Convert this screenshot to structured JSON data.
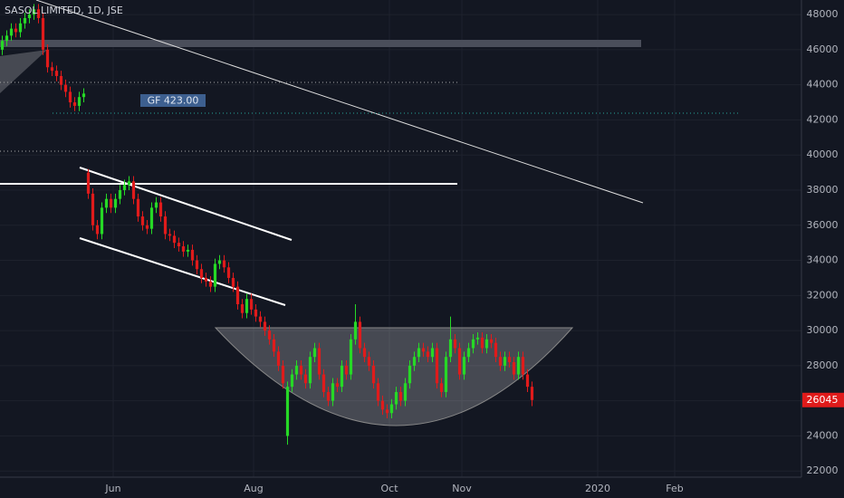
{
  "chart_data": {
    "type": "candlestick",
    "title": "SASOL LIMITED, 1D, JSE",
    "annotation": "GF 423.00",
    "up_color": "#26d926",
    "down_color": "#e01b1b",
    "grid": true,
    "xlim": [
      0,
      177
    ],
    "xticks": [
      {
        "value": 25,
        "label": "Jun"
      },
      {
        "value": 56,
        "label": "Aug"
      },
      {
        "value": 86,
        "label": "Oct"
      },
      {
        "value": 102,
        "label": "Nov"
      },
      {
        "value": 132,
        "label": "2020"
      },
      {
        "value": 149,
        "label": "Feb"
      }
    ],
    "ylim": [
      21650,
      48830
    ],
    "yticks": [
      22000,
      24000,
      26000,
      28000,
      30000,
      32000,
      34000,
      36000,
      38000,
      40000,
      42000,
      44000,
      46000,
      48000
    ],
    "ohlc": [
      [
        46000,
        46800,
        45700,
        46500
      ],
      [
        46500,
        47100,
        46200,
        46800
      ],
      [
        46800,
        47500,
        46500,
        47200
      ],
      [
        47200,
        47500,
        46700,
        47000
      ],
      [
        47000,
        47800,
        46700,
        47500
      ],
      [
        47500,
        48100,
        47200,
        47800
      ],
      [
        47800,
        48300,
        47500,
        48000
      ],
      [
        48000,
        48600,
        47700,
        48300
      ],
      [
        48300,
        48600,
        47500,
        47800
      ],
      [
        47800,
        48100,
        45700,
        46000
      ],
      [
        46000,
        46300,
        44700,
        45000
      ],
      [
        45000,
        45300,
        44500,
        44800
      ],
      [
        44800,
        45100,
        44200,
        44500
      ],
      [
        44500,
        44800,
        43700,
        44000
      ],
      [
        44000,
        44300,
        43300,
        43600
      ],
      [
        43600,
        43900,
        42700,
        43000
      ],
      [
        43000,
        43300,
        42500,
        42800
      ],
      [
        42800,
        43600,
        42500,
        43300
      ],
      [
        43300,
        43800,
        43000,
        43500
      ],
      [
        39000,
        39200,
        37500,
        37800
      ],
      [
        37800,
        38100,
        35700,
        36000
      ],
      [
        36000,
        36300,
        35200,
        35500
      ],
      [
        35500,
        37300,
        35200,
        37000
      ],
      [
        37000,
        37800,
        36700,
        37500
      ],
      [
        37500,
        37800,
        36700,
        37000
      ],
      [
        37000,
        37800,
        36700,
        37500
      ],
      [
        37500,
        38300,
        37200,
        38000
      ],
      [
        38000,
        38600,
        37700,
        38300
      ],
      [
        38300,
        38800,
        38000,
        38500
      ],
      [
        38500,
        38800,
        37200,
        37500
      ],
      [
        37500,
        37800,
        36200,
        36500
      ],
      [
        36500,
        36800,
        35700,
        36000
      ],
      [
        36000,
        36300,
        35500,
        35800
      ],
      [
        35800,
        37300,
        35500,
        37000
      ],
      [
        37000,
        37600,
        36700,
        37300
      ],
      [
        37300,
        37600,
        36200,
        36500
      ],
      [
        36500,
        36800,
        35200,
        35500
      ],
      [
        35500,
        35800,
        35100,
        35400
      ],
      [
        35400,
        35700,
        34700,
        35000
      ],
      [
        35000,
        35300,
        34500,
        34800
      ],
      [
        34800,
        35100,
        34200,
        34500
      ],
      [
        34500,
        34900,
        34200,
        34600
      ],
      [
        34600,
        34900,
        33700,
        34000
      ],
      [
        34000,
        34300,
        33200,
        33500
      ],
      [
        33500,
        33800,
        32700,
        33000
      ],
      [
        33000,
        33300,
        32500,
        32800
      ],
      [
        32800,
        33100,
        32200,
        32500
      ],
      [
        32500,
        34100,
        32200,
        33800
      ],
      [
        33800,
        34300,
        33500,
        34000
      ],
      [
        34000,
        34300,
        33300,
        33600
      ],
      [
        33600,
        33900,
        32700,
        33000
      ],
      [
        33000,
        33300,
        32200,
        32500
      ],
      [
        32500,
        32800,
        31200,
        31500
      ],
      [
        31500,
        31800,
        30700,
        31000
      ],
      [
        31000,
        32100,
        30700,
        31800
      ],
      [
        31800,
        32100,
        30900,
        31200
      ],
      [
        31200,
        31500,
        30500,
        30800
      ],
      [
        30800,
        31100,
        30200,
        30500
      ],
      [
        30500,
        30800,
        29700,
        30000
      ],
      [
        30000,
        30300,
        29200,
        29500
      ],
      [
        29500,
        29800,
        28500,
        28800
      ],
      [
        28800,
        29100,
        27700,
        28000
      ],
      [
        28000,
        28300,
        26700,
        27000
      ],
      [
        24000,
        27100,
        23500,
        26800
      ],
      [
        26800,
        27800,
        26500,
        27500
      ],
      [
        27500,
        28300,
        27200,
        28000
      ],
      [
        28000,
        28300,
        27200,
        27500
      ],
      [
        27500,
        27800,
        26700,
        27000
      ],
      [
        27000,
        28800,
        26700,
        28500
      ],
      [
        28500,
        29300,
        28200,
        29000
      ],
      [
        29000,
        29300,
        27200,
        27500
      ],
      [
        27500,
        27800,
        26200,
        26500
      ],
      [
        26500,
        26800,
        25700,
        26000
      ],
      [
        26000,
        27300,
        25700,
        27000
      ],
      [
        27000,
        27300,
        26500,
        26800
      ],
      [
        26800,
        28300,
        26500,
        28000
      ],
      [
        28000,
        28300,
        27200,
        27500
      ],
      [
        27500,
        29800,
        27200,
        29500
      ],
      [
        29500,
        31500,
        29200,
        30500
      ],
      [
        30500,
        30800,
        28700,
        29000
      ],
      [
        29000,
        29300,
        28200,
        28500
      ],
      [
        28500,
        28800,
        27700,
        28000
      ],
      [
        28000,
        28300,
        26700,
        27000
      ],
      [
        27000,
        27300,
        25700,
        26000
      ],
      [
        26000,
        26300,
        25200,
        25500
      ],
      [
        25500,
        25800,
        25000,
        25300
      ],
      [
        25300,
        26100,
        25000,
        25800
      ],
      [
        25800,
        26800,
        25500,
        26500
      ],
      [
        26500,
        26800,
        25700,
        26000
      ],
      [
        26000,
        27300,
        25700,
        27000
      ],
      [
        27000,
        28300,
        26700,
        28000
      ],
      [
        28000,
        28800,
        27700,
        28500
      ],
      [
        28500,
        29300,
        28200,
        29000
      ],
      [
        29000,
        29300,
        28500,
        28800
      ],
      [
        28800,
        29100,
        28200,
        28500
      ],
      [
        28500,
        29300,
        28200,
        29000
      ],
      [
        29000,
        29300,
        26700,
        27000
      ],
      [
        27000,
        27300,
        26200,
        26500
      ],
      [
        26500,
        28800,
        26200,
        28500
      ],
      [
        28500,
        30800,
        28200,
        29500
      ],
      [
        29500,
        29800,
        28700,
        29000
      ],
      [
        29000,
        29300,
        27200,
        27500
      ],
      [
        27500,
        28800,
        27200,
        28500
      ],
      [
        28500,
        29300,
        28200,
        29000
      ],
      [
        29000,
        29800,
        28700,
        29500
      ],
      [
        29500,
        29900,
        29200,
        29600
      ],
      [
        29600,
        29900,
        28700,
        29000
      ],
      [
        29000,
        29800,
        28700,
        29500
      ],
      [
        29500,
        29800,
        29000,
        29300
      ],
      [
        29300,
        29600,
        28200,
        28500
      ],
      [
        28500,
        28800,
        27700,
        28000
      ],
      [
        28000,
        28800,
        27700,
        28500
      ],
      [
        28500,
        28800,
        27900,
        28200
      ],
      [
        28200,
        28500,
        27200,
        27500
      ],
      [
        27500,
        28800,
        27200,
        28500
      ],
      [
        28500,
        28800,
        27200,
        27500
      ],
      [
        27500,
        27800,
        26500,
        26800
      ],
      [
        26800,
        27100,
        25700,
        26045
      ]
    ]
  }
}
